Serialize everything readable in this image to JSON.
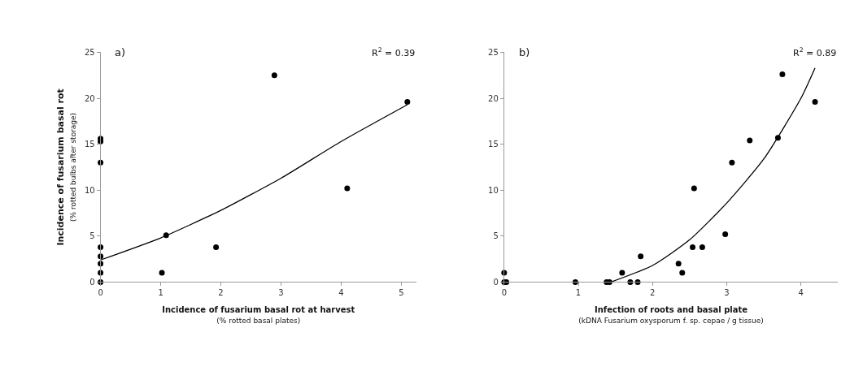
{
  "chart_data": [
    {
      "type": "scatter",
      "title": "a)",
      "xlabel": "Incidence of fusarium basal rot at harvest\n(% rotted basal plates)",
      "ylabel": "Incidence of fusarium basal rot\n(% rotted bulbs after storage)",
      "annotations": [
        "R$^{2}$ = 0.39"
      ],
      "xlim": [
        0,
        5.25
      ],
      "xticks": [
        0,
        1,
        2,
        3,
        4,
        5
      ],
      "ylim": [
        0,
        25
      ],
      "yticks": [
        0,
        5,
        10,
        15,
        20,
        25
      ],
      "series": [
        {
          "marker": "circle",
          "color": "#000000",
          "x": [
            0,
            0,
            0,
            0,
            0,
            0,
            0,
            0,
            1.02,
            1.09,
            1.92,
            2.89,
            4.1,
            5.1
          ],
          "values": [
            15.6,
            15.3,
            13,
            3.8,
            2.8,
            2,
            1,
            0,
            1,
            5.1,
            3.8,
            22.5,
            10.2,
            19.6
          ]
        },
        {
          "type": "line",
          "color": "#000000",
          "line_style": "solid",
          "x": [
            0,
            1,
            2,
            3,
            4,
            5.1
          ],
          "values": [
            2.4,
            4.8,
            7.8,
            11.3,
            15.3,
            19.3
          ]
        }
      ]
    },
    {
      "type": "scatter",
      "title": "b)",
      "xlabel": "Infection of roots and basal plate\n(kDNA Fusarium oxysporum f. sp. cepae / g tissue)",
      "annotations": [
        "R$^{2}$ = 0.89"
      ],
      "xlim": [
        0,
        4.5
      ],
      "xticks": [
        0,
        1,
        2,
        3,
        4
      ],
      "ylim": [
        0,
        25
      ],
      "yticks": [
        0,
        5,
        10,
        15,
        20,
        25
      ],
      "series": [
        {
          "marker": "circle",
          "color": "#000000",
          "x": [
            0,
            0,
            0.03,
            0.96,
            1.38,
            1.42,
            1.59,
            1.7,
            1.8,
            1.84,
            2.35,
            2.4,
            2.54,
            2.56,
            2.67,
            2.98,
            3.07,
            3.31,
            3.69,
            3.75,
            4.19
          ],
          "values": [
            1,
            0,
            0,
            0,
            0,
            0,
            1,
            0,
            0,
            2.8,
            2,
            1,
            3.8,
            10.2,
            3.8,
            5.2,
            13,
            15.4,
            15.7,
            22.6,
            19.6
          ]
        },
        {
          "type": "line",
          "color": "#000000",
          "line_style": "solid",
          "x": [
            1.44,
            2,
            2.5,
            3,
            3.5,
            4,
            4.19
          ],
          "values": [
            0,
            1.8,
            4.6,
            8.6,
            13.4,
            20,
            23.3
          ]
        }
      ]
    }
  ]
}
